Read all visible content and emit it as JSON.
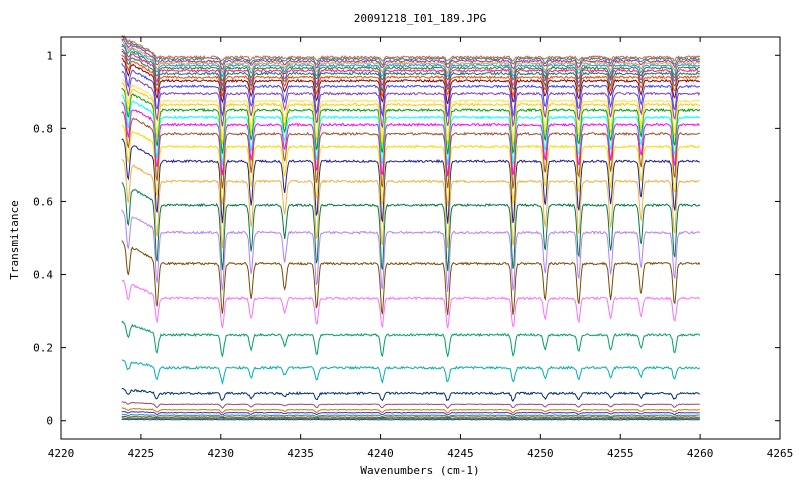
{
  "chart_data": {
    "type": "line",
    "title": "20091218_I01_189.JPG",
    "xlabel": "Wavenumbers (cm-1)",
    "ylabel": "Transmitance",
    "xlim": [
      4220,
      4265
    ],
    "ylim": [
      -0.05,
      1.05
    ],
    "x_ticks": [
      4220,
      4225,
      4230,
      4235,
      4240,
      4245,
      4250,
      4255,
      4260,
      4265
    ],
    "y_ticks": [
      0,
      0.2,
      0.4,
      0.6,
      0.8,
      1
    ],
    "x_tick_labels": [
      "4220",
      "4225",
      "4230",
      "4235",
      "4240",
      "4245",
      "4250",
      "4255",
      "4260",
      "4265"
    ],
    "y_tick_labels": [
      "0",
      "0.2",
      "0.4",
      "0.6",
      "0.8",
      "1"
    ],
    "grid": false,
    "legend": "none",
    "x_range": [
      4223.8,
      4260
    ],
    "absorption_lines": [
      4224.2,
      4226.0,
      4230.1,
      4231.9,
      4234.0,
      4236.0,
      4240.1,
      4244.2,
      4248.3,
      4250.3,
      4252.4,
      4254.4,
      4256.3,
      4258.4
    ],
    "absorption_strengths": [
      0.6,
      0.9,
      1.0,
      0.7,
      0.5,
      0.9,
      1.0,
      1.0,
      1.0,
      0.7,
      0.8,
      0.7,
      0.6,
      0.8
    ],
    "series": [
      {
        "baseline": 0.003,
        "depth": 0.0,
        "color": "#1f3f9f"
      },
      {
        "baseline": 0.006,
        "depth": 0.0,
        "color": "#3a7a3a"
      },
      {
        "baseline": 0.01,
        "depth": 0.002,
        "color": "#7f3f00"
      },
      {
        "baseline": 0.015,
        "depth": 0.004,
        "color": "#00a0a0"
      },
      {
        "baseline": 0.022,
        "depth": 0.006,
        "color": "#6a1fbf"
      },
      {
        "baseline": 0.03,
        "depth": 0.008,
        "color": "#bf7f00"
      },
      {
        "baseline": 0.045,
        "depth": 0.01,
        "color": "#9a4a7a"
      },
      {
        "baseline": 0.075,
        "depth": 0.02,
        "color": "#00306f"
      },
      {
        "baseline": 0.145,
        "depth": 0.04,
        "color": "#00b0b0"
      },
      {
        "baseline": 0.235,
        "depth": 0.06,
        "color": "#00a060"
      },
      {
        "baseline": 0.335,
        "depth": 0.08,
        "color": "#ff70ff"
      },
      {
        "baseline": 0.43,
        "depth": 0.14,
        "color": "#7a4a00"
      },
      {
        "baseline": 0.515,
        "depth": 0.16,
        "color": "#b080ff"
      },
      {
        "baseline": 0.59,
        "depth": 0.18,
        "color": "#007a40"
      },
      {
        "baseline": 0.655,
        "depth": 0.18,
        "color": "#f0b040"
      },
      {
        "baseline": 0.71,
        "depth": 0.17,
        "color": "#1f1f8f"
      },
      {
        "baseline": 0.75,
        "depth": 0.16,
        "color": "#ffd700"
      },
      {
        "baseline": 0.785,
        "depth": 0.15,
        "color": "#a0522d"
      },
      {
        "baseline": 0.81,
        "depth": 0.14,
        "color": "#ff00ff"
      },
      {
        "baseline": 0.83,
        "depth": 0.13,
        "color": "#00ffff"
      },
      {
        "baseline": 0.85,
        "depth": 0.12,
        "color": "#00a000"
      },
      {
        "baseline": 0.865,
        "depth": 0.11,
        "color": "#ffcc00"
      },
      {
        "baseline": 0.875,
        "depth": 0.1,
        "color": "#ffe066"
      },
      {
        "baseline": 0.895,
        "depth": 0.09,
        "color": "#8040c0"
      },
      {
        "baseline": 0.915,
        "depth": 0.08,
        "color": "#4040ff"
      },
      {
        "baseline": 0.93,
        "depth": 0.06,
        "color": "#8b0000"
      },
      {
        "baseline": 0.94,
        "depth": 0.05,
        "color": "#ff4500"
      },
      {
        "baseline": 0.95,
        "depth": 0.045,
        "color": "#008080"
      },
      {
        "baseline": 0.958,
        "depth": 0.04,
        "color": "#ff1493"
      },
      {
        "baseline": 0.965,
        "depth": 0.035,
        "color": "#228b22"
      },
      {
        "baseline": 0.972,
        "depth": 0.03,
        "color": "#1e90ff"
      },
      {
        "baseline": 0.978,
        "depth": 0.025,
        "color": "#daa520"
      },
      {
        "baseline": 0.984,
        "depth": 0.02,
        "color": "#9932cc"
      },
      {
        "baseline": 0.99,
        "depth": 0.015,
        "color": "#2e8b57"
      },
      {
        "baseline": 0.995,
        "depth": 0.01,
        "color": "#cd5c5c"
      }
    ]
  }
}
